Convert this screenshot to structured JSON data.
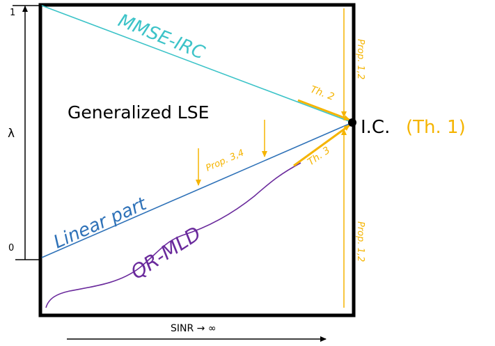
{
  "axes": {
    "y_label": "λ",
    "y_tick_top": "1",
    "y_tick_bottom": "0",
    "x_label": "SINR → ∞"
  },
  "labels": {
    "mmse": "MMSE-IRC",
    "generalized": "Generalized LSE",
    "linear": "Linear part",
    "qrmld": "QR-MLD",
    "ic": "I.C.",
    "ic_ref": "(Th. 1)",
    "th2": "Th. 2",
    "th3": "Th. 3",
    "prop34": "Prop. 3,4",
    "prop12_top": "Prop. 1,2",
    "prop12_bottom": "Prop. 1,2"
  },
  "colors": {
    "mmse": "#3cc3c8",
    "linear": "#2f72b8",
    "qrmld": "#6a2a9c",
    "annot": "#f5b400",
    "frame": "#000000"
  }
}
